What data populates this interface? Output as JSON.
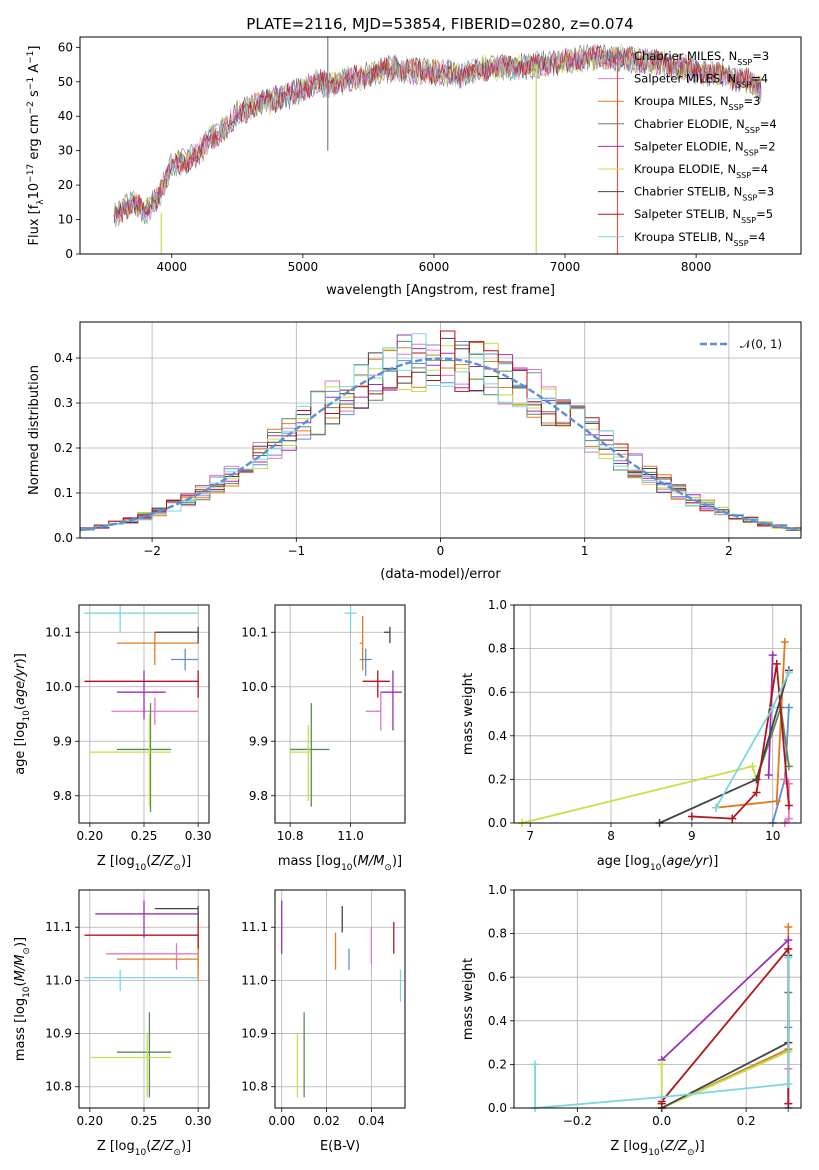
{
  "figure": {
    "title": "PLATE=2116, MJD=53854, FIBERID=0280, z=0.074"
  },
  "legend": {
    "entries": [
      {
        "name": "Chabrier MILES, N",
        "sub": "SSP",
        "eq": "=3",
        "color": "#5b8fd6"
      },
      {
        "name": "Salpeter MILES, N",
        "sub": "SSP",
        "eq": "=4",
        "color": "#e377c2"
      },
      {
        "name": "Kroupa MILES, N",
        "sub": "SSP",
        "eq": "=3",
        "color": "#e07b1f"
      },
      {
        "name": "Chabrier ELODIE, N",
        "sub": "SSP",
        "eq": "=4",
        "color": "#5a8a5a"
      },
      {
        "name": "Salpeter ELODIE, N",
        "sub": "SSP",
        "eq": "=2",
        "color": "#9b30b5"
      },
      {
        "name": "Kroupa ELODIE, N",
        "sub": "SSP",
        "eq": "=4",
        "color": "#c5e04a"
      },
      {
        "name": "Chabrier STELIB, N",
        "sub": "SSP",
        "eq": "=3",
        "color": "#444444"
      },
      {
        "name": "Salpeter STELIB, N",
        "sub": "SSP",
        "eq": "=5",
        "color": "#b0161a"
      },
      {
        "name": "Kroupa STELIB, N",
        "sub": "SSP",
        "eq": "=4",
        "color": "#7dd6df"
      }
    ],
    "gauss_label": "𝒩(0, 1)",
    "gauss_color": "#5b8fd6"
  },
  "chart_data": [
    {
      "id": "spectrum",
      "type": "line",
      "xlabel": "wavelength [Angstrom, rest frame]",
      "ylabel": "Flux [f_λ 10^-17 erg cm^-2 s^-1 A^-1]",
      "xlim": [
        3300,
        8800
      ],
      "ylim": [
        0,
        63
      ],
      "xticks": [
        4000,
        5000,
        6000,
        7000,
        8000
      ],
      "yticks": [
        0,
        10,
        20,
        30,
        40,
        50,
        60
      ],
      "grid": false,
      "legend_position": "top-right",
      "continuum": {
        "x": [
          3550,
          3700,
          3800,
          3900,
          3950,
          4000,
          4100,
          4200,
          4300,
          4400,
          4500,
          4700,
          4900,
          5000,
          5100,
          5200,
          5300,
          5500,
          5700,
          5900,
          6000,
          6200,
          6400,
          6600,
          6800,
          7000,
          7200,
          7400,
          7600,
          7800,
          8000,
          8200,
          8400,
          8500
        ],
        "y": [
          11,
          15,
          12,
          17,
          21,
          26,
          27,
          29,
          34,
          36,
          41,
          44,
          46,
          48,
          50,
          49,
          50,
          52,
          54,
          53,
          53,
          52,
          54,
          54,
          55,
          56,
          57,
          57,
          56,
          55,
          53,
          52,
          50,
          48
        ]
      },
      "spikes": [
        {
          "x": 3920,
          "y_min": 0,
          "y_max": 12,
          "color": "#c5e04a"
        },
        {
          "x": 5190,
          "y_min": 30,
          "y_max": 63,
          "color": "#7f7f7f"
        },
        {
          "x": 6780,
          "y_min": 0,
          "y_max": 55,
          "color": "#c5e04a"
        },
        {
          "x": 7400,
          "y_min": 0,
          "y_max": 60,
          "color": "#d0603a"
        }
      ]
    },
    {
      "id": "residual-histogram",
      "type": "histogram",
      "xlabel": "(data-model)/error",
      "ylabel": "Normed distribution",
      "xlim": [
        -2.5,
        2.5
      ],
      "ylim": [
        0,
        0.48
      ],
      "xticks": [
        -2,
        -1,
        0,
        1,
        2
      ],
      "yticks": [
        0.0,
        0.1,
        0.2,
        0.3,
        0.4
      ],
      "grid": true,
      "bin_width": 0.1,
      "model": "normal(0,1)",
      "series": [
        {
          "name": "Chabrier MILES",
          "noise_seed": 1
        },
        {
          "name": "Salpeter MILES",
          "noise_seed": 2
        },
        {
          "name": "Kroupa MILES",
          "noise_seed": 3
        },
        {
          "name": "Chabrier ELODIE",
          "noise_seed": 4
        },
        {
          "name": "Salpeter ELODIE",
          "noise_seed": 5
        },
        {
          "name": "Kroupa ELODIE",
          "noise_seed": 6
        },
        {
          "name": "Chabrier STELIB",
          "noise_seed": 7
        },
        {
          "name": "Salpeter STELIB",
          "noise_seed": 8
        },
        {
          "name": "Kroupa STELIB",
          "noise_seed": 9
        }
      ]
    },
    {
      "id": "age-vs-Z",
      "type": "errorbar",
      "xlabel": "Z [log10(Z/Z⊙)]",
      "ylabel": "age  [log10(age/yr)]",
      "xlim": [
        0.19,
        0.31
      ],
      "ylim": [
        9.75,
        10.15
      ],
      "xticks": [
        0.2,
        0.25,
        0.3
      ],
      "yticks": [
        9.8,
        9.9,
        10.0,
        10.1
      ],
      "grid": true,
      "points": [
        {
          "x": 0.288,
          "xlo": 0.275,
          "xhi": 0.3,
          "y": 10.05,
          "ylo": 10.03,
          "yhi": 10.07
        },
        {
          "x": 0.26,
          "xlo": 0.22,
          "xhi": 0.3,
          "y": 9.955,
          "ylo": 9.93,
          "yhi": 9.98
        },
        {
          "x": 0.26,
          "xlo": 0.225,
          "xhi": 0.3,
          "y": 10.08,
          "ylo": 10.04,
          "yhi": 10.1
        },
        {
          "x": 0.256,
          "xlo": 0.225,
          "xhi": 0.275,
          "y": 9.885,
          "ylo": 9.77,
          "yhi": 9.97
        },
        {
          "x": 0.25,
          "xlo": 0.225,
          "xhi": 0.27,
          "y": 9.99,
          "ylo": 9.94,
          "yhi": 10.03
        },
        {
          "x": 0.255,
          "xlo": 0.2,
          "xhi": 0.275,
          "y": 9.88,
          "ylo": 9.78,
          "yhi": 9.95
        },
        {
          "x": 0.3,
          "xlo": 0.26,
          "xhi": 0.3,
          "y": 10.1,
          "ylo": 10.08,
          "yhi": 10.11
        },
        {
          "x": 0.3,
          "xlo": 0.195,
          "xhi": 0.3,
          "y": 10.01,
          "ylo": 9.98,
          "yhi": 10.03
        },
        {
          "x": 0.228,
          "xlo": 0.195,
          "xhi": 0.3,
          "y": 10.135,
          "ylo": 10.1,
          "yhi": 10.15
        }
      ]
    },
    {
      "id": "age-vs-mass",
      "type": "errorbar",
      "xlabel": "mass [log10(M/M⊙)]",
      "ylabel": "",
      "xlim": [
        10.75,
        11.18
      ],
      "ylim": [
        9.75,
        10.15
      ],
      "xticks": [
        10.8,
        11.0
      ],
      "yticks": [
        9.8,
        9.9,
        10.0,
        10.1
      ],
      "grid": true,
      "points": [
        {
          "x": 11.05,
          "xlo": 11.03,
          "xhi": 11.07,
          "y": 10.05,
          "ylo": 10.02,
          "yhi": 10.07
        },
        {
          "x": 11.1,
          "xlo": 11.05,
          "xhi": 11.1,
          "y": 9.955,
          "ylo": 9.92,
          "yhi": 9.99
        },
        {
          "x": 11.04,
          "xlo": 11.03,
          "xhi": 11.04,
          "y": 10.08,
          "ylo": 10.03,
          "yhi": 10.13
        },
        {
          "x": 10.87,
          "xlo": 10.8,
          "xhi": 10.93,
          "y": 9.885,
          "ylo": 9.78,
          "yhi": 9.97
        },
        {
          "x": 11.14,
          "xlo": 11.1,
          "xhi": 11.17,
          "y": 9.99,
          "ylo": 9.92,
          "yhi": 10.03
        },
        {
          "x": 10.86,
          "xlo": 10.8,
          "xhi": 10.87,
          "y": 9.88,
          "ylo": 9.79,
          "yhi": 9.93
        },
        {
          "x": 11.13,
          "xlo": 11.11,
          "xhi": 11.13,
          "y": 10.1,
          "ylo": 10.08,
          "yhi": 10.11
        },
        {
          "x": 11.09,
          "xlo": 11.04,
          "xhi": 11.13,
          "y": 10.01,
          "ylo": 9.98,
          "yhi": 10.03
        },
        {
          "x": 11.0,
          "xlo": 10.98,
          "xhi": 11.02,
          "y": 10.135,
          "ylo": 10.1,
          "yhi": 10.15
        }
      ]
    },
    {
      "id": "mass-weight-vs-age",
      "type": "line",
      "xlabel": "age  [log10(age/yr)]",
      "ylabel": "mass weight",
      "xlim": [
        6.8,
        10.35
      ],
      "ylim": [
        0,
        1.0
      ],
      "xticks": [
        7,
        8,
        9,
        10
      ],
      "yticks": [
        0.0,
        0.2,
        0.4,
        0.6,
        0.8,
        1.0
      ],
      "grid": true,
      "series": [
        {
          "name": "Chabrier MILES",
          "points": [
            [
              10.0,
              0.0
            ],
            [
              10.15,
              0.2
            ],
            [
              10.2,
              0.53
            ]
          ]
        },
        {
          "name": "Salpeter MILES",
          "points": [
            [
              10.15,
              0.0
            ],
            [
              10.2,
              0.02
            ],
            [
              10.2,
              0.18
            ],
            [
              10.15,
              0.2
            ]
          ]
        },
        {
          "name": "Kroupa MILES",
          "points": [
            [
              9.3,
              0.07
            ],
            [
              10.05,
              0.1
            ],
            [
              10.15,
              0.83
            ]
          ]
        },
        {
          "name": "Chabrier ELODIE",
          "points": [
            [
              9.8,
              0.2
            ],
            [
              10.1,
              0.53
            ],
            [
              10.2,
              0.26
            ]
          ]
        },
        {
          "name": "Salpeter ELODIE",
          "points": [
            [
              9.95,
              0.22
            ],
            [
              10.0,
              0.77
            ]
          ]
        },
        {
          "name": "Kroupa ELODIE",
          "points": [
            [
              6.9,
              0.0
            ],
            [
              9.75,
              0.26
            ],
            [
              9.8,
              0.2
            ]
          ]
        },
        {
          "name": "Chabrier STELIB",
          "points": [
            [
              8.6,
              0.0
            ],
            [
              9.8,
              0.2
            ],
            [
              10.2,
              0.7
            ]
          ]
        },
        {
          "name": "Salpeter STELIB",
          "points": [
            [
              9.0,
              0.03
            ],
            [
              9.5,
              0.02
            ],
            [
              9.8,
              0.14
            ],
            [
              10.05,
              0.73
            ],
            [
              10.2,
              0.08
            ]
          ]
        },
        {
          "name": "Kroupa STELIB",
          "points": [
            [
              9.3,
              0.07
            ],
            [
              10.0,
              0.53
            ],
            [
              10.2,
              0.69
            ]
          ]
        }
      ]
    },
    {
      "id": "mass-vs-Z",
      "type": "errorbar",
      "xlabel": "Z [log10(Z/Z⊙)]",
      "ylabel": "mass [log10(M/M⊙)]",
      "xlim": [
        0.19,
        0.31
      ],
      "ylim": [
        10.76,
        11.17
      ],
      "xticks": [
        0.2,
        0.25,
        0.3
      ],
      "yticks": [
        10.8,
        10.9,
        11.0,
        11.1
      ],
      "grid": true,
      "points": [
        {
          "x": 0.3,
          "xlo": 0.3,
          "xhi": 0.3,
          "y": 11.05,
          "ylo": 11.02,
          "yhi": 11.08
        },
        {
          "x": 0.28,
          "xlo": 0.215,
          "xhi": 0.3,
          "y": 11.05,
          "ylo": 11.02,
          "yhi": 11.07
        },
        {
          "x": 0.3,
          "xlo": 0.225,
          "xhi": 0.3,
          "y": 11.04,
          "ylo": 11.0,
          "yhi": 11.07
        },
        {
          "x": 0.255,
          "xlo": 0.225,
          "xhi": 0.275,
          "y": 10.865,
          "ylo": 10.78,
          "yhi": 10.94
        },
        {
          "x": 0.25,
          "xlo": 0.205,
          "xhi": 0.3,
          "y": 11.125,
          "ylo": 11.08,
          "yhi": 11.15
        },
        {
          "x": 0.253,
          "xlo": 0.2,
          "xhi": 0.275,
          "y": 10.855,
          "ylo": 10.78,
          "yhi": 10.9
        },
        {
          "x": 0.3,
          "xlo": 0.26,
          "xhi": 0.3,
          "y": 11.135,
          "ylo": 11.11,
          "yhi": 11.14
        },
        {
          "x": 0.3,
          "xlo": 0.195,
          "xhi": 0.3,
          "y": 11.085,
          "ylo": 11.06,
          "yhi": 11.11
        },
        {
          "x": 0.228,
          "xlo": 0.195,
          "xhi": 0.3,
          "y": 11.005,
          "ylo": 10.98,
          "yhi": 11.02
        }
      ]
    },
    {
      "id": "mass-vs-ebv",
      "type": "errorbar",
      "xlabel": "E(B-V)",
      "ylabel": "",
      "xlim": [
        -0.003,
        0.055
      ],
      "ylim": [
        10.76,
        11.17
      ],
      "xticks": [
        0.0,
        0.02,
        0.04
      ],
      "yticks": [
        10.8,
        10.9,
        11.0,
        11.1
      ],
      "grid": true,
      "points": [
        {
          "x": 0.03,
          "y": 11.04,
          "ylo": 11.02,
          "yhi": 11.06
        },
        {
          "x": 0.04,
          "y": 11.07,
          "ylo": 11.03,
          "yhi": 11.1
        },
        {
          "x": 0.024,
          "y": 11.055,
          "ylo": 11.02,
          "yhi": 11.09
        },
        {
          "x": 0.01,
          "y": 10.86,
          "ylo": 10.78,
          "yhi": 10.94
        },
        {
          "x": 0.0,
          "y": 11.1,
          "ylo": 11.05,
          "yhi": 11.15
        },
        {
          "x": 0.007,
          "y": 10.85,
          "ylo": 10.78,
          "yhi": 10.9
        },
        {
          "x": 0.027,
          "y": 11.12,
          "ylo": 11.09,
          "yhi": 11.14
        },
        {
          "x": 0.05,
          "y": 11.085,
          "ylo": 11.05,
          "yhi": 11.11
        },
        {
          "x": 0.053,
          "y": 10.99,
          "ylo": 10.96,
          "yhi": 11.02
        }
      ]
    },
    {
      "id": "mass-weight-vs-Z",
      "type": "line",
      "xlabel": "Z [log10(Z/Z⊙)]",
      "ylabel": "mass weight",
      "xlim": [
        -0.35,
        0.33
      ],
      "ylim": [
        0,
        1.0
      ],
      "xticks": [
        -0.2,
        0.0,
        0.2
      ],
      "yticks": [
        0.0,
        0.2,
        0.4,
        0.6,
        0.8,
        1.0
      ],
      "grid": true,
      "series": [
        {
          "name": "Chabrier MILES",
          "points": [
            [
              0.3,
              0.0
            ],
            [
              0.3,
              0.37
            ]
          ]
        },
        {
          "name": "Salpeter MILES",
          "points": [
            [
              0.3,
              0.02
            ],
            [
              0.3,
              0.18
            ]
          ]
        },
        {
          "name": "Kroupa MILES",
          "points": [
            [
              0.0,
              0.0
            ],
            [
              0.3,
              0.27
            ],
            [
              0.3,
              0.83
            ]
          ]
        },
        {
          "name": "Chabrier ELODIE",
          "points": [
            [
              0.0,
              0.0
            ],
            [
              0.3,
              0.26
            ],
            [
              0.3,
              0.53
            ]
          ]
        },
        {
          "name": "Salpeter ELODIE",
          "points": [
            [
              0.0,
              0.22
            ],
            [
              0.3,
              0.77
            ]
          ]
        },
        {
          "name": "Kroupa ELODIE",
          "points": [
            [
              0.0,
              0.2
            ],
            [
              0.0,
              0.0
            ],
            [
              0.3,
              0.26
            ]
          ]
        },
        {
          "name": "Chabrier STELIB",
          "points": [
            [
              0.0,
              0.0
            ],
            [
              0.3,
              0.3
            ],
            [
              0.3,
              0.7
            ]
          ]
        },
        {
          "name": "Salpeter STELIB",
          "points": [
            [
              0.0,
              0.02
            ],
            [
              0.0,
              0.03
            ],
            [
              0.3,
              0.73
            ],
            [
              0.3,
              0.02
            ]
          ]
        },
        {
          "name": "Kroupa STELIB",
          "points": [
            [
              -0.3,
              0.2
            ],
            [
              -0.3,
              0.0
            ],
            [
              0.0,
              0.05
            ],
            [
              0.3,
              0.11
            ],
            [
              0.3,
              0.69
            ]
          ]
        }
      ]
    }
  ]
}
